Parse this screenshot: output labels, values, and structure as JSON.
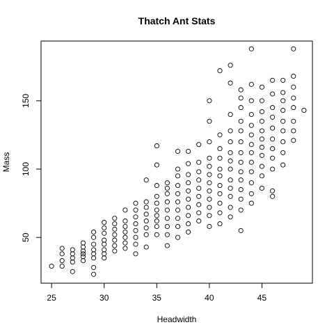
{
  "chart_data": {
    "type": "scatter",
    "title": "Thatch Ant Stats",
    "xlabel": "Headwidth",
    "ylabel": "Mass",
    "xlim": [
      24.0,
      49.8
    ],
    "ylim": [
      16.5,
      193.7
    ],
    "x_ticks": [
      25,
      30,
      35,
      40,
      45
    ],
    "y_ticks": [
      50,
      100,
      150
    ],
    "grid": false,
    "legend": "none",
    "marker_color": "#000000",
    "points": [
      [
        25,
        29
      ],
      [
        26,
        29
      ],
      [
        26,
        33
      ],
      [
        26,
        38
      ],
      [
        26,
        42
      ],
      [
        27,
        25
      ],
      [
        27,
        32
      ],
      [
        27,
        35
      ],
      [
        27,
        38
      ],
      [
        27,
        41
      ],
      [
        28,
        33
      ],
      [
        28,
        36
      ],
      [
        28,
        38
      ],
      [
        28,
        40
      ],
      [
        28,
        43
      ],
      [
        28,
        46
      ],
      [
        29,
        23
      ],
      [
        29,
        28
      ],
      [
        29,
        35
      ],
      [
        29,
        38
      ],
      [
        29,
        41
      ],
      [
        29,
        45
      ],
      [
        29,
        50
      ],
      [
        29,
        54
      ],
      [
        30,
        35
      ],
      [
        30,
        38
      ],
      [
        30,
        41
      ],
      [
        30,
        45
      ],
      [
        30,
        48
      ],
      [
        30,
        53
      ],
      [
        30,
        57
      ],
      [
        30,
        61
      ],
      [
        31,
        40
      ],
      [
        31,
        44
      ],
      [
        31,
        48
      ],
      [
        31,
        52
      ],
      [
        31,
        56
      ],
      [
        31,
        60
      ],
      [
        31,
        64
      ],
      [
        32,
        42
      ],
      [
        32,
        46
      ],
      [
        32,
        50
      ],
      [
        32,
        54
      ],
      [
        32,
        58
      ],
      [
        32,
        62
      ],
      [
        32,
        70
      ],
      [
        33,
        38
      ],
      [
        33,
        45
      ],
      [
        33,
        50
      ],
      [
        33,
        55
      ],
      [
        33,
        60
      ],
      [
        33,
        65
      ],
      [
        33,
        70
      ],
      [
        33,
        75
      ],
      [
        34,
        43
      ],
      [
        34,
        52
      ],
      [
        34,
        57
      ],
      [
        34,
        62
      ],
      [
        34,
        67
      ],
      [
        34,
        72
      ],
      [
        34,
        76
      ],
      [
        34,
        92
      ],
      [
        35,
        52
      ],
      [
        35,
        58
      ],
      [
        35,
        62
      ],
      [
        35,
        66
      ],
      [
        35,
        70
      ],
      [
        35,
        75
      ],
      [
        35,
        80
      ],
      [
        35,
        88
      ],
      [
        35,
        103
      ],
      [
        35,
        117
      ],
      [
        36,
        44
      ],
      [
        36,
        52
      ],
      [
        36,
        58
      ],
      [
        36,
        64
      ],
      [
        36,
        70
      ],
      [
        36,
        76
      ],
      [
        36,
        82
      ],
      [
        36,
        86
      ],
      [
        36,
        90
      ],
      [
        37,
        50
      ],
      [
        37,
        58
      ],
      [
        37,
        64
      ],
      [
        37,
        70
      ],
      [
        37,
        76
      ],
      [
        37,
        82
      ],
      [
        37,
        88
      ],
      [
        37,
        95
      ],
      [
        37,
        100
      ],
      [
        37,
        113
      ],
      [
        38,
        54
      ],
      [
        38,
        60
      ],
      [
        38,
        66
      ],
      [
        38,
        72
      ],
      [
        38,
        78
      ],
      [
        38,
        84
      ],
      [
        38,
        90
      ],
      [
        38,
        96
      ],
      [
        38,
        104
      ],
      [
        38,
        113
      ],
      [
        39,
        62
      ],
      [
        39,
        68
      ],
      [
        39,
        74
      ],
      [
        39,
        80
      ],
      [
        39,
        86
      ],
      [
        39,
        92
      ],
      [
        39,
        98
      ],
      [
        39,
        105
      ],
      [
        39,
        118
      ],
      [
        40,
        58
      ],
      [
        40,
        66
      ],
      [
        40,
        72
      ],
      [
        40,
        78
      ],
      [
        40,
        84
      ],
      [
        40,
        90
      ],
      [
        40,
        96
      ],
      [
        40,
        102
      ],
      [
        40,
        108
      ],
      [
        40,
        120
      ],
      [
        40,
        135
      ],
      [
        40,
        150
      ],
      [
        41,
        60
      ],
      [
        41,
        68
      ],
      [
        41,
        75
      ],
      [
        41,
        82
      ],
      [
        41,
        88
      ],
      [
        41,
        95
      ],
      [
        41,
        100
      ],
      [
        41,
        108
      ],
      [
        41,
        115
      ],
      [
        41,
        125
      ],
      [
        41,
        172
      ],
      [
        42,
        65
      ],
      [
        42,
        72
      ],
      [
        42,
        80
      ],
      [
        42,
        86
      ],
      [
        42,
        92
      ],
      [
        42,
        100
      ],
      [
        42,
        106
      ],
      [
        42,
        112
      ],
      [
        42,
        120
      ],
      [
        42,
        128
      ],
      [
        42,
        140
      ],
      [
        42,
        163
      ],
      [
        42,
        176
      ],
      [
        43,
        55
      ],
      [
        43,
        70
      ],
      [
        43,
        78
      ],
      [
        43,
        85
      ],
      [
        43,
        92
      ],
      [
        43,
        98
      ],
      [
        43,
        105
      ],
      [
        43,
        112
      ],
      [
        43,
        120
      ],
      [
        43,
        128
      ],
      [
        43,
        135
      ],
      [
        43,
        145
      ],
      [
        43,
        152
      ],
      [
        43,
        158
      ],
      [
        44,
        75
      ],
      [
        44,
        82
      ],
      [
        44,
        90
      ],
      [
        44,
        98
      ],
      [
        44,
        105
      ],
      [
        44,
        112
      ],
      [
        44,
        118
      ],
      [
        44,
        125
      ],
      [
        44,
        132
      ],
      [
        44,
        140
      ],
      [
        44,
        150
      ],
      [
        44,
        162
      ],
      [
        44,
        188
      ],
      [
        45,
        86
      ],
      [
        45,
        95
      ],
      [
        45,
        102
      ],
      [
        45,
        110
      ],
      [
        45,
        116
      ],
      [
        45,
        122
      ],
      [
        45,
        128
      ],
      [
        45,
        135
      ],
      [
        45,
        142
      ],
      [
        45,
        150
      ],
      [
        45,
        160
      ],
      [
        46,
        80
      ],
      [
        46,
        84
      ],
      [
        46,
        100
      ],
      [
        46,
        108
      ],
      [
        46,
        115
      ],
      [
        46,
        122
      ],
      [
        46,
        130
      ],
      [
        46,
        138
      ],
      [
        46,
        145
      ],
      [
        46,
        155
      ],
      [
        46,
        165
      ],
      [
        47,
        103
      ],
      [
        47,
        112
      ],
      [
        47,
        120
      ],
      [
        47,
        128
      ],
      [
        47,
        135
      ],
      [
        47,
        143
      ],
      [
        47,
        150
      ],
      [
        47,
        156
      ],
      [
        47,
        165
      ],
      [
        48,
        121
      ],
      [
        48,
        128
      ],
      [
        48,
        135
      ],
      [
        48,
        145
      ],
      [
        48,
        152
      ],
      [
        48,
        160
      ],
      [
        48,
        168
      ],
      [
        48,
        188
      ],
      [
        49,
        143
      ]
    ]
  }
}
